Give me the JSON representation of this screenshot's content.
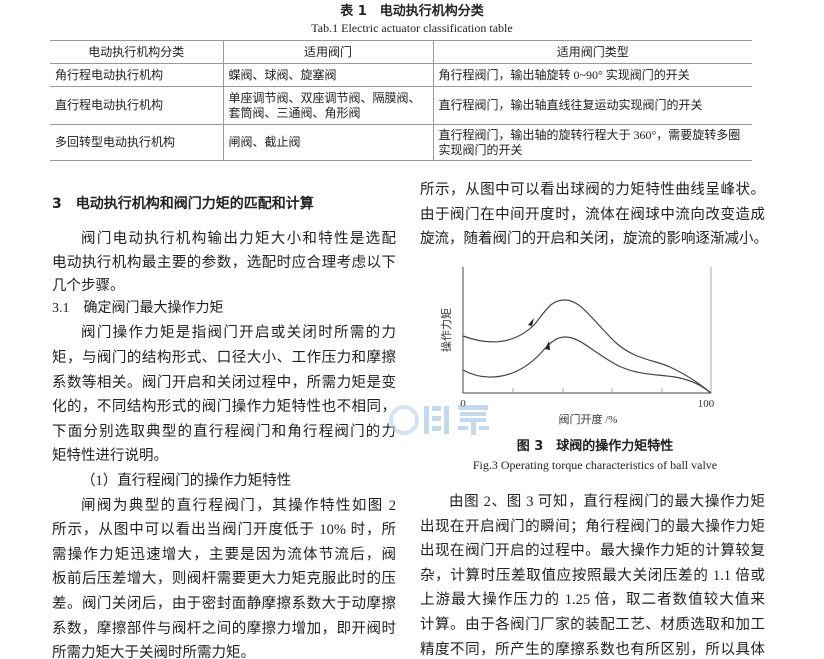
{
  "table": {
    "title_cn": "表 1　电动执行机构分类",
    "title_en": "Tab.1  Electric actuator classification table",
    "headers": [
      "电动执行机构分类",
      "适用阀门",
      "适用阀门类型"
    ],
    "rows": [
      [
        "角行程电动执行机构",
        "蝶阀、球阀、旋塞阀",
        "角行程阀门，输出轴旋转 0~90° 实现阀门的开关"
      ],
      [
        "直行程电动执行机构",
        "单座调节阀、双座调节阀、隔膜阀、套筒阀、三通阀、角形阀",
        "直行程阀门，输出轴直线往复运动实现阀门的开关"
      ],
      [
        "多回转型电动执行机构",
        "闸阀、截止阀",
        "直行程阀门，输出轴的旋转行程大于 360°，需要旋转多圈实现阀门的开关"
      ]
    ]
  },
  "left": {
    "heading": "3　电动执行机构和阀门力矩的匹配和计算",
    "lines": [
      "阀门电动执行机构输出力矩大小和特性是选配",
      "电动执行机构最主要的参数，选配时应合理考虑以下",
      "几个步骤。",
      "3.1　确定阀门最大操作力矩",
      "阀门操作力矩是指阀门开启或关闭时所需的力",
      "矩，与阀门的结构形式、口径大小、工作压力和摩擦",
      "系数等相关。阀门开启和关闭过程中，所需力矩是变",
      "化的，不同结构形式的阀门操作力矩特性也不相同，",
      "下面分别选取典型的直行程阀门和角行程阀门的力",
      "矩特性进行说明。",
      "（1）直行程阀门的操作力矩特性",
      "闸阀为典型的直行程阀门，其操作特性如图 2",
      "所示，从图中可以看出当阀门开度低于 10% 时，所",
      "需操作力矩迅速增大，主要是因为流体节流后，阀",
      "板前后压差增大，则阀杆需要更大力矩克服此时的压",
      "差。阀门关闭后，由于密封面静摩擦系数大于动摩擦",
      "系数，摩擦部件与阀杆之间的摩擦力增加，即开阀时",
      "所需力矩大于关阀时所需力矩。"
    ]
  },
  "right": {
    "top_lines": [
      "所示，从图中可以看出球阀的力矩特性曲线呈峰状。",
      "由于阀门在中间开度时，流体在阀球中流向改变造成",
      "旋流，随着阀门的开启和关闭，旋流的影响逐渐减小。"
    ],
    "figure": {
      "ylabel": "操作力矩",
      "xlabel": "阀门开度 /%",
      "x_min_label": "0",
      "x_max_label": "100",
      "caption_cn": "图 3　球阀的操作力矩特性",
      "caption_en": "Fig.3  Operating torque characteristics of ball valve"
    },
    "bottom_lines": [
      "由图 2、图 3 可知，直行程阀门的最大操作力矩",
      "出现在开启阀门的瞬间；角行程阀门的最大操作力矩",
      "出现在阀门开启的过程中。最大操作力矩的计算较复",
      "杂，计算时压差取值应按照最大关闭压差的 1.1 倍或",
      "上游最大操作压力的 1.25 倍，取二者数值较大值来",
      "计算。由于各阀门厂家的装配工艺、材质选取和加工",
      "精度不同，所产生的摩擦系数也有所区别，所以具体"
    ]
  },
  "watermark": "湖泉"
}
